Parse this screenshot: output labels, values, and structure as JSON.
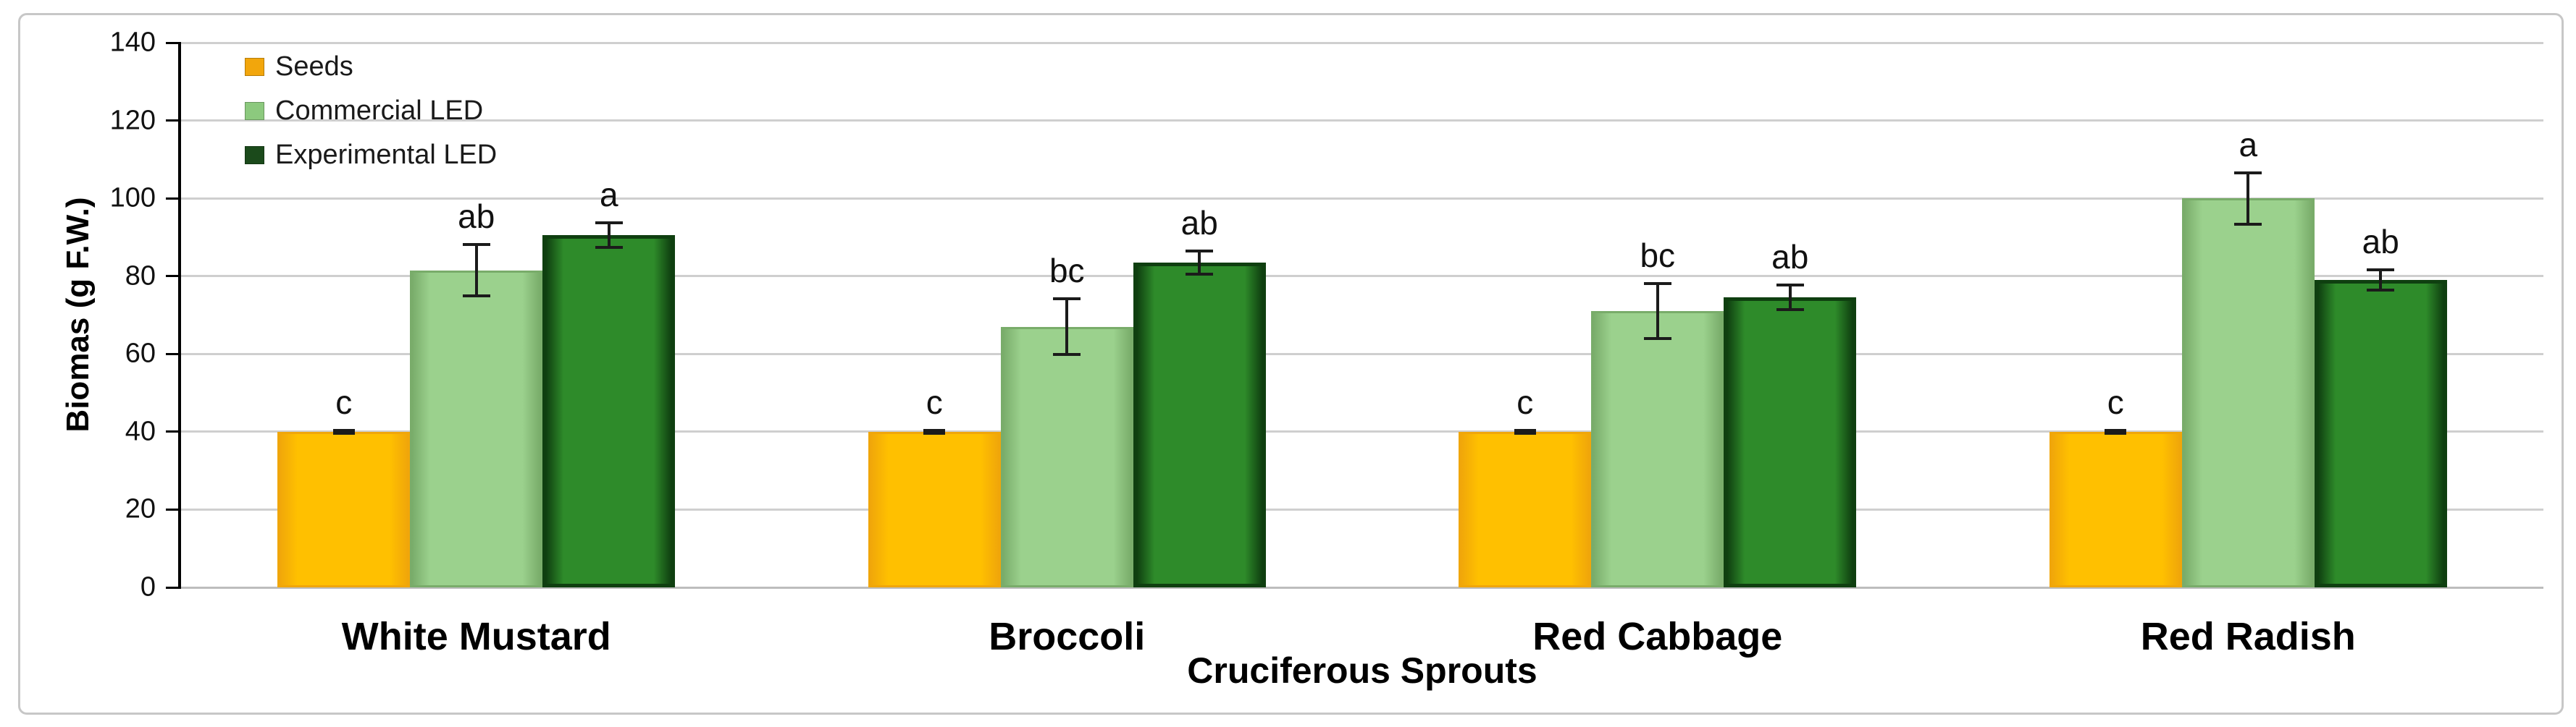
{
  "figure": {
    "background": "#FFFFFF",
    "frame_border_color": "#C7C7C7"
  },
  "chart_data": {
    "type": "bar",
    "title": "",
    "xlabel": "Cruciferous Sprouts",
    "ylabel": "Biomas (g F.W.)",
    "ylim": [
      0,
      140
    ],
    "ytick_step": 20,
    "grid": true,
    "legend_position": "top-left",
    "categories": [
      "White Mustard",
      "Broccoli",
      "Red Cabbage",
      "Red Radish"
    ],
    "series": [
      {
        "name": "Seeds",
        "fill": "#FFC000",
        "border": "#F0A60A",
        "swatch": "#F2A60C",
        "values": [
          40,
          40,
          40,
          40
        ],
        "errors": [
          0.7,
          0.7,
          0.7,
          0.7
        ],
        "sig_letters": [
          "c",
          "c",
          "c",
          "c"
        ]
      },
      {
        "name": "Commercial LED",
        "fill": "#9BD18D",
        "border": "#79AC6A",
        "swatch": "#8CC97E",
        "values": [
          81.5,
          67,
          71,
          100
        ],
        "errors": [
          7,
          7.5,
          7.5,
          7
        ],
        "sig_letters": [
          "ab",
          "bc",
          "bc",
          "a"
        ]
      },
      {
        "name": "Experimental LED",
        "fill": "#2E8B2A",
        "border": "#0F3F10",
        "swatch": "#1B4A1B",
        "values": [
          90.5,
          83.5,
          74.5,
          79
        ],
        "errors": [
          3.5,
          3.3,
          3.5,
          3
        ],
        "sig_letters": [
          "a",
          "ab",
          "ab",
          "ab"
        ]
      }
    ],
    "error_bar_color": "#1B1B1B",
    "gridline_color": "#CFCFCF",
    "axis_color": "#000000",
    "sig_letter_color": "#111111"
  }
}
